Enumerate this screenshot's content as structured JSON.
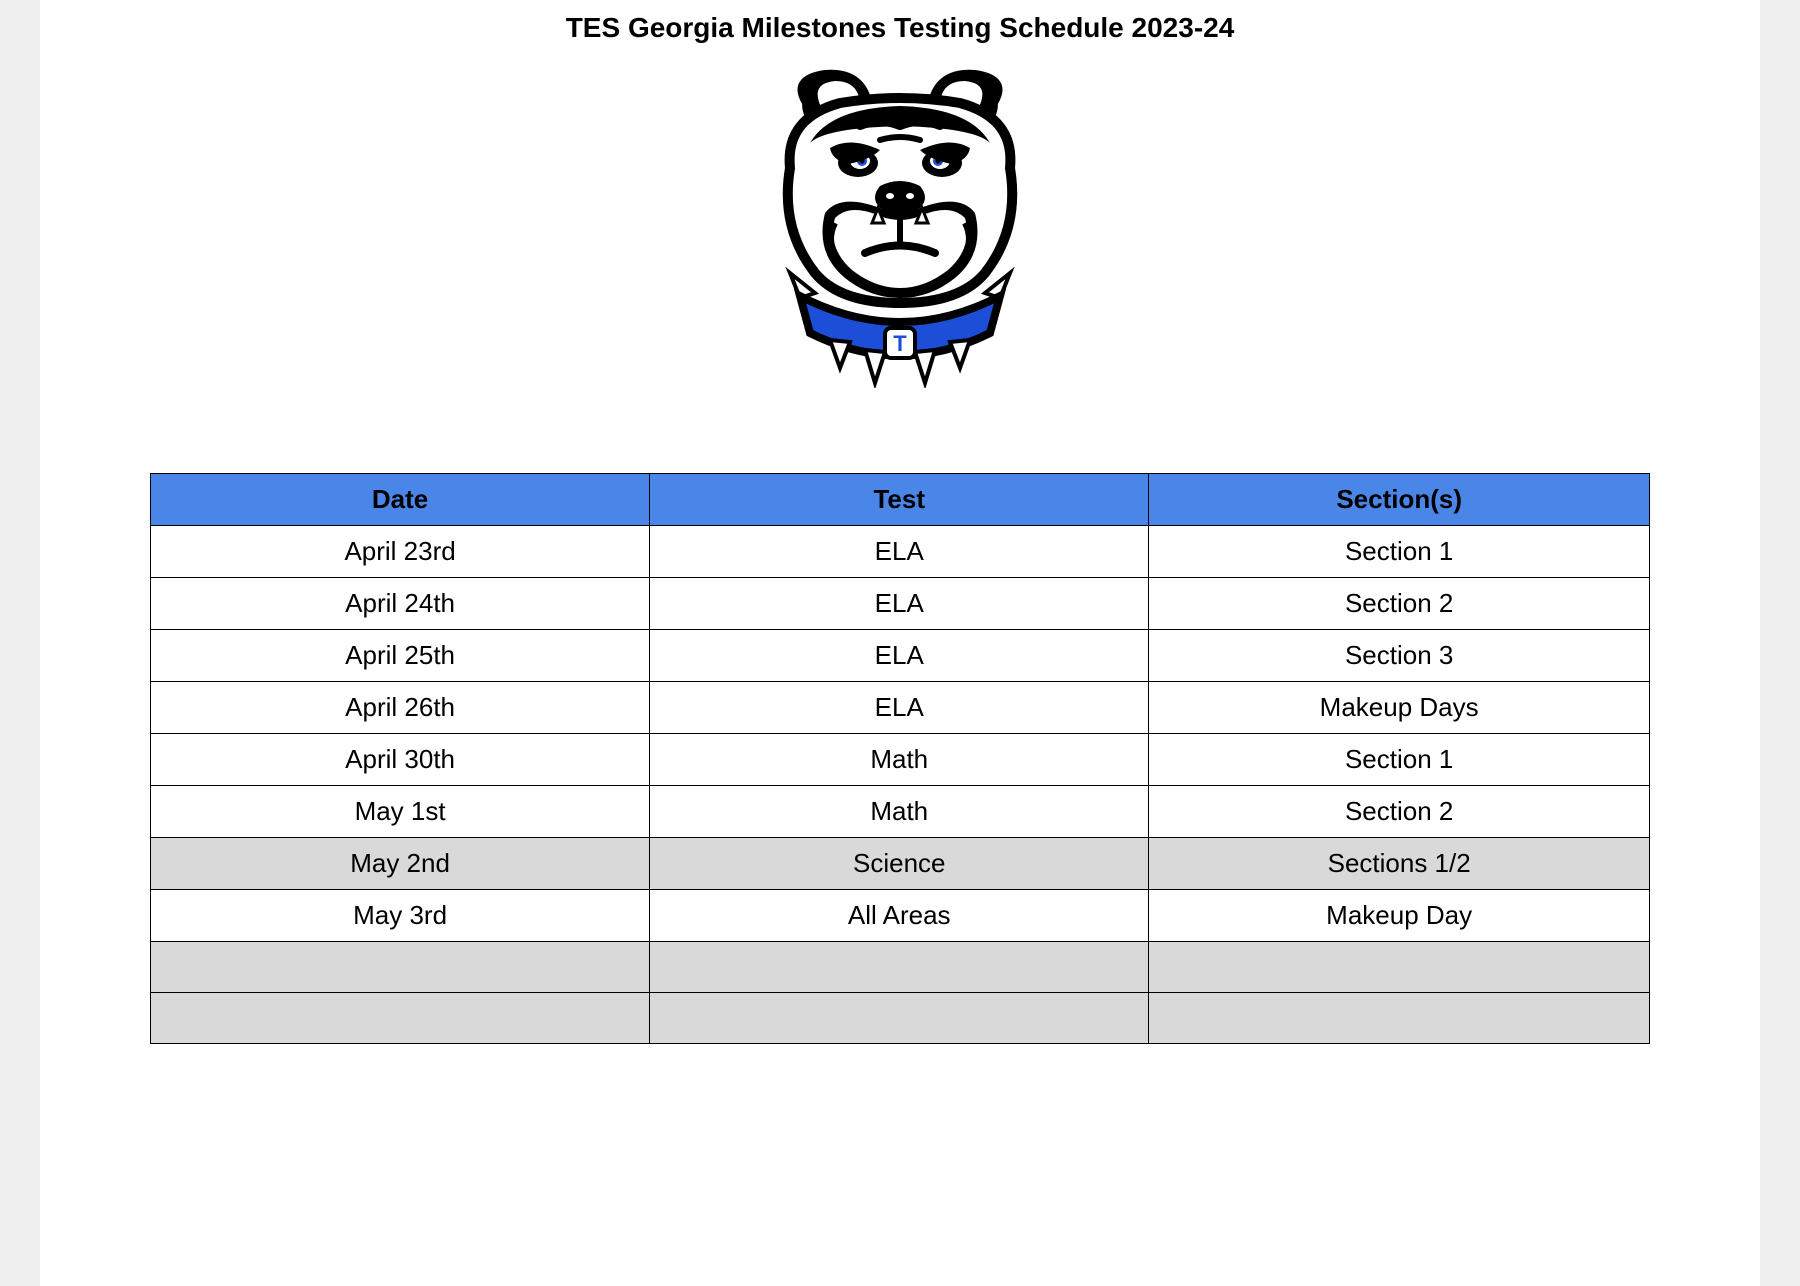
{
  "title": "TES Georgia Milestones Testing Schedule 2023-24",
  "logo": {
    "description": "bulldog-mascot",
    "collar_color": "#1d4ed8",
    "outline_color": "#000000",
    "face_color": "#ffffff",
    "eye_color": "#1d4ed8",
    "letter": "T"
  },
  "table": {
    "type": "table",
    "header_bg": "#4a86e8",
    "header_text_color": "#000000",
    "row_bg_default": "#ffffff",
    "row_bg_highlight": "#d9d9d9",
    "border_color": "#000000",
    "font_size": 26,
    "column_widths": [
      "33.3%",
      "33.3%",
      "33.4%"
    ],
    "columns": [
      "Date",
      "Test",
      "Section(s)"
    ],
    "rows": [
      {
        "cells": [
          "April 23rd",
          "ELA",
          "Section 1"
        ],
        "bg": "#ffffff"
      },
      {
        "cells": [
          "April 24th",
          "ELA",
          "Section 2"
        ],
        "bg": "#ffffff"
      },
      {
        "cells": [
          "April 25th",
          "ELA",
          "Section 3"
        ],
        "bg": "#ffffff"
      },
      {
        "cells": [
          "April 26th",
          "ELA",
          "Makeup Days"
        ],
        "bg": "#ffffff"
      },
      {
        "cells": [
          "April 30th",
          "Math",
          "Section 1"
        ],
        "bg": "#ffffff"
      },
      {
        "cells": [
          "May 1st",
          "Math",
          "Section 2"
        ],
        "bg": "#ffffff"
      },
      {
        "cells": [
          "May 2nd",
          "Science",
          "Sections 1/2"
        ],
        "bg": "#d9d9d9"
      },
      {
        "cells": [
          "May 3rd",
          "All Areas",
          "Makeup Day"
        ],
        "bg": "#ffffff"
      },
      {
        "cells": [
          "",
          "",
          ""
        ],
        "bg": "#d9d9d9"
      },
      {
        "cells": [
          "",
          "",
          ""
        ],
        "bg": "#d9d9d9"
      }
    ]
  }
}
